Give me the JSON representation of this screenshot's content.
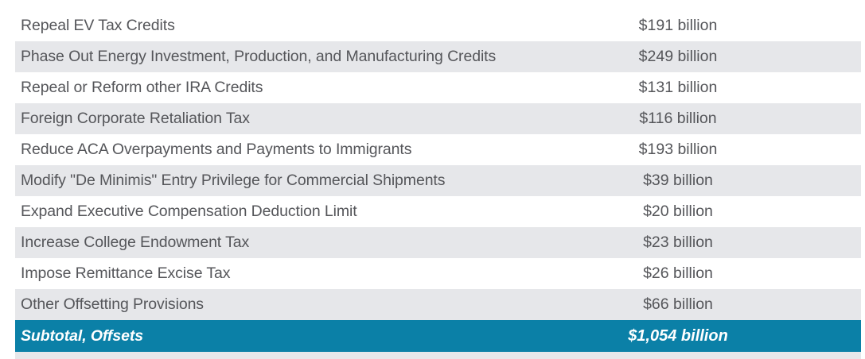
{
  "table": {
    "rows": [
      {
        "label": "Repeal EV Tax Credits",
        "value": "$191 billion"
      },
      {
        "label": "Phase Out Energy Investment, Production, and Manufacturing Credits",
        "value": "$249 billion"
      },
      {
        "label": "Repeal or Reform other IRA Credits",
        "value": "$131 billion"
      },
      {
        "label": "Foreign Corporate Retaliation Tax",
        "value": "$116 billion"
      },
      {
        "label": "Reduce ACA Overpayments and Payments to Immigrants",
        "value": "$193 billion"
      },
      {
        "label": "Modify \"De Minimis\" Entry Privilege for Commercial Shipments",
        "value": "$39 billion"
      },
      {
        "label": "Expand Executive Compensation Deduction Limit",
        "value": "$20 billion"
      },
      {
        "label": "Increase College Endowment Tax",
        "value": "$23 billion"
      },
      {
        "label": "Impose Remittance Excise Tax",
        "value": "$26 billion"
      },
      {
        "label": "Other Offsetting Provisions",
        "value": "$66 billion"
      }
    ],
    "subtotal": {
      "label": "Subtotal, Offsets",
      "value": "$1,054 billion"
    },
    "colors": {
      "shaded_row": "#e6e7ea",
      "subtotal_bg": "#0b80a7",
      "text": "#55565a"
    }
  }
}
